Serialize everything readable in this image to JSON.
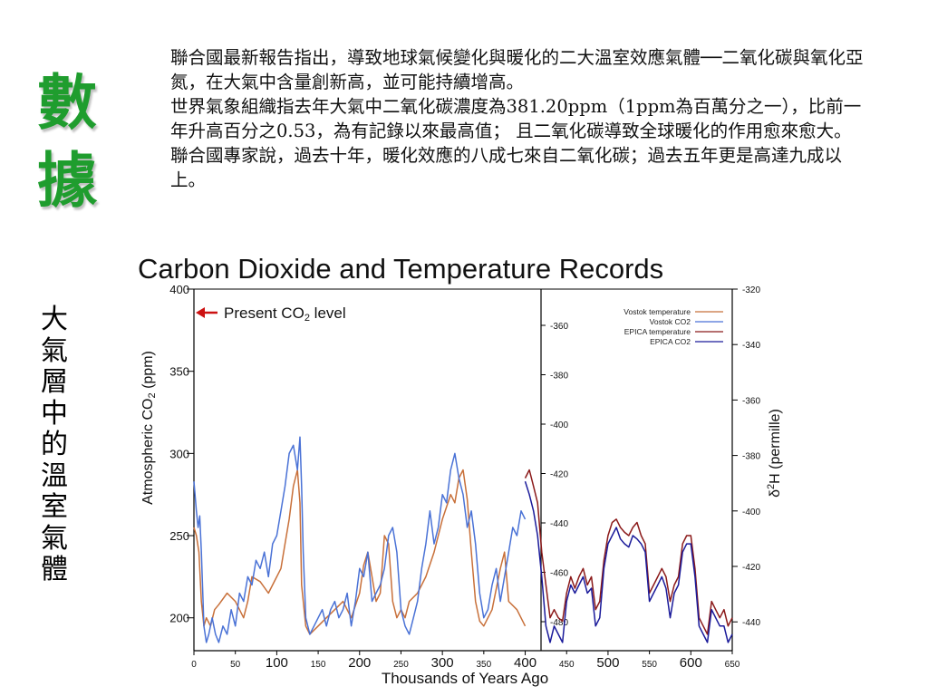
{
  "heading": {
    "chars": [
      "數",
      "據"
    ]
  },
  "paragraph": {
    "p1": "聯合國最新報告指出，導致地球氣候變化與暖化的二大溫室效應氣體──二氧化碳與氧化亞氮，在大氣中含量創新高，並可能持續增高。",
    "p2": "世界氣象組織指去年大氣中二氧化碳濃度為381.20ppm（1ppm為百萬分之一），比前一年升高百分之0.53，為有記錄以來最高值； 且二氧化碳導致全球暖化的作用愈來愈大。",
    "p3": "聯合國專家說，過去十年，暖化效應的八成七來自二氧化碳；過去五年更是高達九成以上。"
  },
  "side_label": {
    "chars": [
      "大",
      "氣",
      "層",
      "中",
      "的",
      "溫",
      "室",
      "氣",
      "體"
    ]
  },
  "chart_data": {
    "type": "line",
    "title": "Carbon Dioxide and Temperature Records",
    "xlabel": "Thousands of Years Ago",
    "ylabel": "Atmospheric CO2 (ppm)",
    "y2label": "δ2H (permille)",
    "annotation": "Present CO2 level",
    "xlim": [
      0,
      650
    ],
    "ylim": [
      180,
      400
    ],
    "x_major_ticks": [
      0,
      100,
      200,
      300,
      400,
      500,
      600
    ],
    "x_minor_ticks": [
      50,
      150,
      250,
      350,
      450,
      550,
      650
    ],
    "y_ticks": [
      200,
      250,
      300,
      350,
      400
    ],
    "y2_ticks_vostok": [
      -360,
      -380,
      -400,
      -420,
      -440,
      -460,
      -480
    ],
    "y2_ticks_epica": [
      -320,
      -340,
      -360,
      -380,
      -400,
      -420,
      -440
    ],
    "legend_position": "top-right",
    "series": [
      {
        "name": "Vostok temperature",
        "color": "#c8703a",
        "x": [
          0,
          3,
          6,
          9,
          12,
          15,
          20,
          25,
          30,
          40,
          50,
          60,
          65,
          70,
          80,
          90,
          100,
          105,
          110,
          115,
          120,
          125,
          128,
          130,
          135,
          140,
          150,
          160,
          170,
          180,
          190,
          200,
          205,
          210,
          215,
          220,
          225,
          230,
          235,
          240,
          245,
          250,
          255,
          260,
          270,
          280,
          290,
          300,
          310,
          315,
          320,
          325,
          330,
          335,
          340,
          345,
          350,
          360,
          370,
          375,
          380,
          390,
          400
        ],
        "y": [
          255,
          250,
          240,
          210,
          195,
          200,
          195,
          205,
          208,
          215,
          210,
          200,
          210,
          225,
          222,
          215,
          225,
          230,
          245,
          260,
          280,
          290,
          270,
          220,
          195,
          190,
          195,
          200,
          205,
          210,
          200,
          215,
          232,
          240,
          225,
          210,
          215,
          250,
          245,
          210,
          200,
          205,
          200,
          210,
          215,
          225,
          240,
          260,
          275,
          270,
          285,
          290,
          272,
          240,
          210,
          198,
          195,
          205,
          230,
          240,
          210,
          205,
          195
        ]
      },
      {
        "name": "Vostok CO2",
        "color": "#4a72d6",
        "x": [
          0,
          3,
          5,
          7,
          9,
          12,
          15,
          18,
          22,
          26,
          30,
          35,
          40,
          45,
          50,
          55,
          60,
          65,
          70,
          75,
          80,
          85,
          90,
          95,
          100,
          105,
          110,
          115,
          120,
          125,
          128,
          130,
          132,
          135,
          140,
          145,
          150,
          155,
          160,
          165,
          170,
          175,
          180,
          185,
          190,
          195,
          200,
          205,
          210,
          215,
          220,
          225,
          230,
          235,
          240,
          245,
          250,
          255,
          260,
          265,
          270,
          275,
          280,
          285,
          290,
          295,
          300,
          305,
          310,
          315,
          320,
          325,
          330,
          335,
          340,
          345,
          350,
          355,
          360,
          365,
          370,
          375,
          380,
          385,
          390,
          395,
          400
        ],
        "y": [
          283,
          265,
          255,
          262,
          240,
          195,
          185,
          190,
          200,
          190,
          185,
          195,
          190,
          205,
          195,
          215,
          210,
          225,
          220,
          235,
          230,
          240,
          225,
          245,
          250,
          265,
          280,
          300,
          305,
          290,
          310,
          280,
          240,
          200,
          190,
          195,
          200,
          205,
          195,
          205,
          210,
          200,
          205,
          215,
          195,
          210,
          230,
          225,
          240,
          210,
          215,
          220,
          230,
          250,
          255,
          240,
          205,
          195,
          190,
          200,
          210,
          230,
          245,
          265,
          245,
          255,
          275,
          270,
          290,
          300,
          285,
          275,
          255,
          265,
          245,
          215,
          200,
          205,
          220,
          230,
          210,
          225,
          240,
          255,
          250,
          265,
          260
        ]
      },
      {
        "name": "EPICA temperature",
        "color": "#8b1a1a",
        "x": [
          400,
          405,
          410,
          415,
          420,
          425,
          430,
          435,
          440,
          445,
          450,
          455,
          460,
          465,
          470,
          475,
          480,
          485,
          490,
          495,
          500,
          505,
          510,
          515,
          520,
          525,
          530,
          535,
          540,
          545,
          550,
          555,
          560,
          565,
          570,
          575,
          580,
          585,
          590,
          595,
          600,
          605,
          610,
          615,
          620,
          625,
          630,
          635,
          640,
          645,
          650
        ],
        "y": [
          285,
          290,
          280,
          270,
          240,
          220,
          200,
          205,
          200,
          198,
          215,
          225,
          218,
          225,
          230,
          220,
          225,
          205,
          210,
          235,
          250,
          258,
          260,
          255,
          252,
          250,
          255,
          258,
          250,
          245,
          215,
          220,
          225,
          230,
          225,
          210,
          220,
          225,
          245,
          250,
          250,
          230,
          200,
          195,
          190,
          210,
          205,
          200,
          205,
          195,
          200
        ]
      },
      {
        "name": "EPICA CO2",
        "color": "#1a1a9a",
        "x": [
          400,
          405,
          410,
          415,
          420,
          425,
          430,
          435,
          440,
          445,
          450,
          455,
          460,
          465,
          470,
          475,
          480,
          485,
          490,
          495,
          500,
          505,
          510,
          515,
          520,
          525,
          530,
          535,
          540,
          545,
          550,
          555,
          560,
          565,
          570,
          575,
          580,
          585,
          590,
          595,
          600,
          605,
          610,
          615,
          620,
          625,
          630,
          635,
          640,
          645,
          650
        ],
        "y": [
          283,
          275,
          265,
          250,
          225,
          195,
          185,
          195,
          190,
          185,
          210,
          220,
          215,
          220,
          225,
          215,
          218,
          195,
          200,
          230,
          245,
          250,
          255,
          248,
          245,
          243,
          250,
          248,
          245,
          240,
          210,
          215,
          220,
          225,
          218,
          200,
          215,
          220,
          240,
          245,
          245,
          225,
          195,
          190,
          185,
          205,
          200,
          195,
          195,
          185,
          190
        ]
      }
    ]
  }
}
